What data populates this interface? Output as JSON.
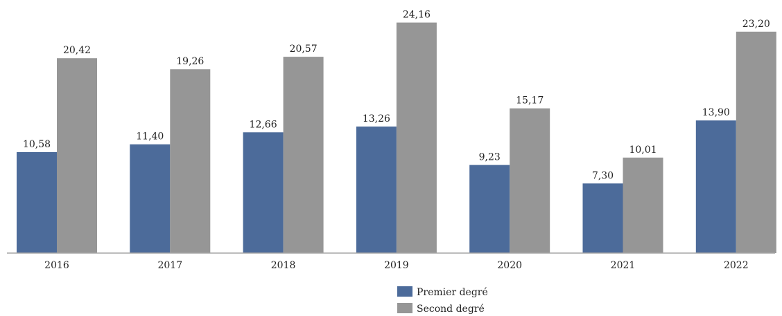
{
  "chart_data": {
    "type": "bar",
    "categories": [
      "2016",
      "2017",
      "2018",
      "2019",
      "2020",
      "2021",
      "2022"
    ],
    "series": [
      {
        "name": "Premier degré",
        "color": "#4c6b9a",
        "values": [
          10.58,
          11.4,
          12.66,
          13.26,
          9.23,
          7.3,
          13.9
        ],
        "labels": [
          "10,58",
          "11,40",
          "12,66",
          "13,26",
          "9,23",
          "7,30",
          "13,90"
        ]
      },
      {
        "name": "Second degré",
        "color": "#969696",
        "values": [
          20.42,
          19.26,
          20.57,
          24.16,
          15.17,
          10.01,
          23.2
        ],
        "labels": [
          "20,42",
          "19,26",
          "20,57",
          "24,16",
          "15,17",
          "10,01",
          "23,20"
        ]
      }
    ],
    "title": "",
    "xlabel": "",
    "ylabel": "",
    "ylim": [
      0,
      25
    ],
    "grid": false,
    "legend_position": "bottom"
  }
}
